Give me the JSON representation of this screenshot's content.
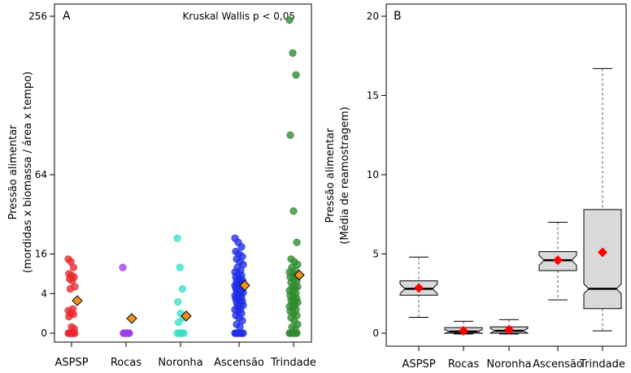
{
  "chart_data": [
    {
      "type": "scatter",
      "panel_label": "A",
      "annotation": "Kruskal Wallis p < 0,05",
      "ylabel": "Pressão alimentar",
      "ylabel2": "(mordidas x biomassa / área x tempo)",
      "y_scale": "sqrt",
      "yticks": [
        0,
        4,
        16,
        64,
        256
      ],
      "ylim": [
        0,
        256
      ],
      "categories": [
        "ASPSP",
        "Rocas",
        "Noronha",
        "Ascensão",
        "Trindade"
      ],
      "colors": [
        "#e8262b",
        "#9e3ee8",
        "#38e0c8",
        "#1f2ee6",
        "#2e8a2e"
      ],
      "mean_color": "#f0921e",
      "points": [
        [
          14,
          13,
          11,
          9,
          8.5,
          8,
          7.5,
          7,
          5.5,
          5,
          1.5,
          1.3,
          1,
          0.9,
          0.7,
          0.1,
          0.05,
          0,
          0,
          0,
          0,
          0,
          0,
          0
        ],
        [
          11,
          0,
          0,
          0,
          0,
          0,
          0,
          0,
          0,
          0
        ],
        [
          23,
          11,
          5,
          2.5,
          1,
          0.6,
          0.3,
          0,
          0,
          0,
          0,
          0,
          0,
          0
        ],
        [
          23,
          21,
          19,
          17,
          16,
          15,
          14,
          13,
          12,
          11,
          10,
          9.5,
          9,
          8.5,
          8,
          7.5,
          7.2,
          7,
          6.8,
          6.5,
          6.2,
          6,
          5.8,
          5.6,
          5.4,
          5.2,
          5,
          4.8,
          4.6,
          4.4,
          4.2,
          4,
          3.8,
          3.6,
          3.4,
          3.2,
          3,
          2.8,
          2.6,
          2.4,
          2.2,
          2,
          1.8,
          1.6,
          1.4,
          1.2,
          1,
          0.8,
          0.6,
          0.4,
          0.2,
          0.1,
          0,
          0,
          0,
          0,
          0,
          0,
          0
        ],
        [
          250,
          200,
          170,
          100,
          38,
          21,
          14,
          13,
          12,
          11,
          10,
          9.5,
          9,
          8.6,
          8,
          7.5,
          7,
          6.5,
          6,
          5.5,
          5.2,
          5,
          4.6,
          4.2,
          4,
          3.6,
          3.2,
          3,
          2.8,
          2.6,
          2.4,
          2.2,
          2,
          1.8,
          1.6,
          1.4,
          1.2,
          1,
          0.8,
          0.6,
          0.4,
          0.2,
          0.1,
          0.05,
          0,
          0,
          0,
          0,
          0,
          0
        ]
      ],
      "means": [
        2.7,
        0.55,
        0.75,
        5.8,
        8.6
      ],
      "mean_errors": [
        [
          2.2,
          3.2
        ],
        [
          0.45,
          0.65
        ],
        [
          0.6,
          0.9
        ],
        [
          5.1,
          6.5
        ],
        [
          7.3,
          10
        ]
      ]
    },
    {
      "type": "box",
      "panel_label": "B",
      "ylabel": "Pressão alimentar",
      "ylabel2": "(Média de reamostragem)",
      "yticks": [
        0,
        5,
        10,
        15,
        20
      ],
      "ylim": [
        -0.8,
        20.5
      ],
      "categories": [
        "ASPSP",
        "Rocas",
        "Noronha",
        "Ascensão",
        "Trindade"
      ],
      "box_fill": "#d9d9d9",
      "mean_color": "#ff0000",
      "boxes": [
        {
          "min": 1.0,
          "q1": 2.4,
          "median": 2.8,
          "q3": 3.3,
          "max": 4.8,
          "mean": 2.85
        },
        {
          "min": -0.05,
          "q1": 0.0,
          "median": 0.1,
          "q3": 0.35,
          "max": 0.75,
          "mean": 0.15
        },
        {
          "min": -0.05,
          "q1": 0.0,
          "median": 0.15,
          "q3": 0.4,
          "max": 0.85,
          "mean": 0.22
        },
        {
          "min": 2.1,
          "q1": 3.95,
          "median": 4.6,
          "q3": 5.15,
          "max": 7.0,
          "mean": 4.6
        },
        {
          "min": 0.15,
          "q1": 1.55,
          "median": 2.8,
          "q3": 7.8,
          "max": 16.7,
          "mean": 5.1
        }
      ]
    }
  ]
}
